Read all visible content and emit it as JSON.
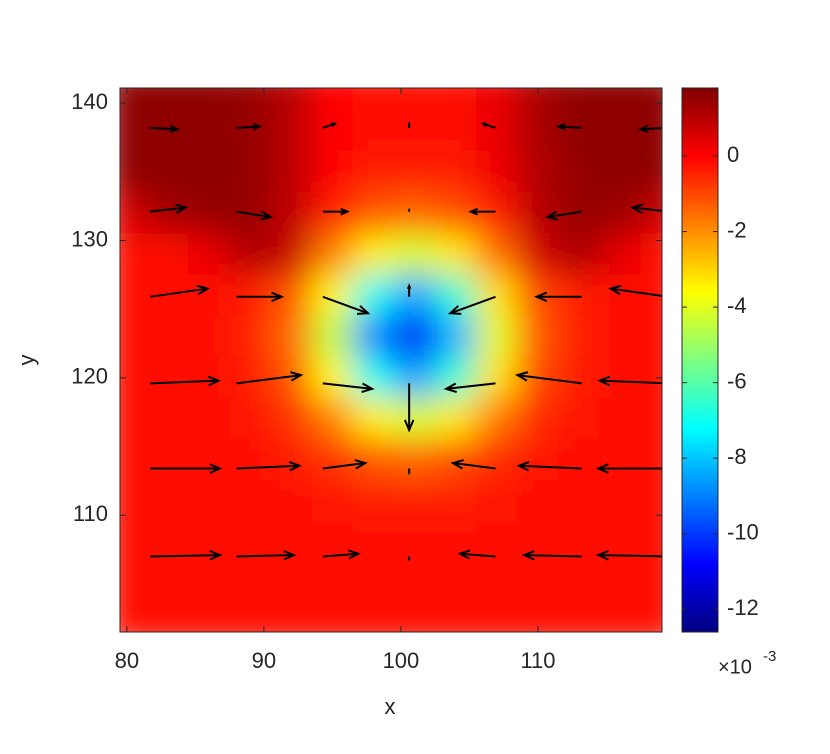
{
  "chart_data": {
    "type": "heatmap",
    "xlabel": "x",
    "ylabel": "y",
    "xlim": [
      79.5,
      119.05
    ],
    "ylim": [
      101.5,
      141.1
    ],
    "xticks": [
      80,
      90,
      100,
      110
    ],
    "yticks": [
      110,
      120,
      130,
      140
    ],
    "colormap": "jet",
    "clim": [
      -12.6,
      1.8
    ],
    "colorbar_ticks": [
      0,
      -2,
      -4,
      -6,
      -8,
      -10,
      -12
    ],
    "colorbar_exponent": {
      "base": "×10",
      "power": "-3"
    },
    "field": {
      "x": [
        80,
        83,
        86,
        89,
        92,
        95,
        98,
        101,
        104,
        107,
        110,
        113,
        116,
        119
      ],
      "y": [
        141,
        138,
        135,
        132,
        129,
        126,
        123,
        120,
        117,
        114,
        111,
        108,
        105,
        102
      ],
      "z": [
        [
          1.6,
          1.6,
          1.6,
          1.5,
          1.0,
          0.0,
          -0.2,
          -0.2,
          -0.2,
          0.3,
          1.2,
          1.6,
          1.6,
          1.6
        ],
        [
          1.6,
          1.6,
          1.6,
          1.5,
          1.0,
          0.0,
          -0.2,
          -0.2,
          -0.2,
          0.3,
          1.2,
          1.6,
          1.6,
          1.6
        ],
        [
          1.6,
          1.6,
          1.6,
          1.5,
          1.0,
          0.0,
          -0.4,
          -0.4,
          -0.4,
          0.2,
          1.1,
          1.5,
          1.6,
          1.6
        ],
        [
          0.6,
          1.3,
          1.5,
          1.5,
          0.9,
          -0.4,
          -1.2,
          -1.4,
          -1.1,
          -0.4,
          1.0,
          1.5,
          1.4,
          0.8
        ],
        [
          -0.2,
          -0.1,
          0.3,
          1.1,
          0.8,
          -1.8,
          -3.4,
          -4.2,
          -3.3,
          -1.6,
          0.6,
          1.2,
          0.4,
          -0.2
        ],
        [
          -0.2,
          -0.2,
          -0.2,
          -0.4,
          -1.2,
          -3.5,
          -7.0,
          -8.6,
          -6.6,
          -3.2,
          -1.0,
          -0.4,
          -0.2,
          -0.2
        ],
        [
          -0.2,
          -0.2,
          -0.2,
          -0.5,
          -1.5,
          -4.5,
          -8.9,
          -10.9,
          -8.3,
          -4.0,
          -1.3,
          -0.4,
          -0.2,
          -0.2
        ],
        [
          -0.2,
          -0.2,
          -0.2,
          -0.4,
          -1.2,
          -3.5,
          -7.0,
          -8.6,
          -6.6,
          -3.2,
          -1.0,
          -0.4,
          -0.2,
          -0.2
        ],
        [
          -0.2,
          -0.2,
          -0.2,
          -0.3,
          -0.7,
          -1.8,
          -3.4,
          -4.2,
          -3.3,
          -1.7,
          -0.6,
          -0.3,
          -0.2,
          -0.2
        ],
        [
          -0.2,
          -0.2,
          -0.2,
          -0.2,
          -0.4,
          -0.7,
          -1.2,
          -1.4,
          -1.1,
          -0.6,
          -0.3,
          -0.2,
          -0.2,
          -0.2
        ],
        [
          -0.2,
          -0.2,
          -0.2,
          -0.2,
          -0.2,
          -0.3,
          -0.4,
          -0.4,
          -0.4,
          -0.3,
          -0.2,
          -0.2,
          -0.2,
          -0.2
        ],
        [
          -0.2,
          -0.2,
          -0.2,
          -0.2,
          -0.2,
          -0.2,
          -0.2,
          -0.2,
          -0.2,
          -0.2,
          -0.2,
          -0.2,
          -0.2,
          -0.2
        ],
        [
          -0.2,
          -0.2,
          -0.2,
          -0.2,
          -0.2,
          -0.2,
          -0.2,
          -0.2,
          -0.2,
          -0.2,
          -0.2,
          -0.2,
          -0.2,
          -0.2
        ],
        [
          -0.2,
          -0.2,
          -0.2,
          -0.2,
          -0.2,
          -0.2,
          -0.2,
          -0.2,
          -0.2,
          -0.2,
          -0.2,
          -0.2,
          -0.2,
          -0.2
        ]
      ]
    },
    "quiver": {
      "color": "#000000",
      "x": [
        81.7,
        88.0,
        94.3,
        100.6,
        106.9,
        113.2,
        119.5
      ],
      "y": [
        138.2,
        132.1,
        125.9,
        119.6,
        113.4,
        107.0
      ],
      "u": [
        [
          2.0,
          1.7,
          0.9,
          0,
          -0.9,
          -1.7,
          -2.0
        ],
        [
          2.6,
          2.5,
          1.8,
          0,
          -1.8,
          -2.5,
          -2.6
        ],
        [
          4.2,
          3.3,
          3.3,
          0,
          -3.3,
          -3.3,
          -4.2
        ],
        [
          5.0,
          4.7,
          3.6,
          0,
          -3.6,
          -4.7,
          -5.0
        ],
        [
          5.1,
          4.6,
          3.1,
          0,
          -3.1,
          -4.6,
          -5.1
        ],
        [
          5.1,
          4.2,
          2.6,
          0,
          -2.6,
          -4.2,
          -5.1
        ]
      ],
      "v": [
        [
          -0.1,
          0.1,
          0.3,
          0.3,
          0.3,
          0.1,
          -0.1
        ],
        [
          0.3,
          -0.4,
          0,
          0.1,
          0,
          -0.4,
          0.3
        ],
        [
          0.6,
          0,
          -1.2,
          0.8,
          -1.2,
          0,
          0.6
        ],
        [
          0.2,
          0.6,
          -0.4,
          -3.4,
          -0.4,
          0.6,
          0.2
        ],
        [
          0,
          0.2,
          0.4,
          -0.3,
          0.4,
          0.2,
          0
        ],
        [
          0.1,
          0.1,
          0.2,
          -0.2,
          0.2,
          0.1,
          0.1
        ]
      ]
    }
  }
}
